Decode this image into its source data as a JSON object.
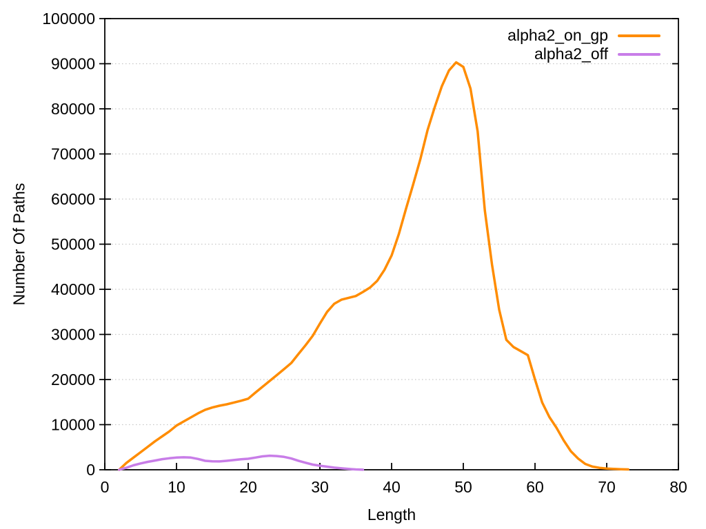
{
  "figure": {
    "background": "#ffffff",
    "border_color": "#000000",
    "grid_color": "#c6c6c6",
    "text_color": "#000000"
  },
  "chart_data": {
    "type": "line",
    "title": "",
    "xlabel": "Length",
    "ylabel": "Number Of Paths",
    "xlim": [
      0,
      80
    ],
    "ylim": [
      0,
      100000
    ],
    "x_ticks": [
      0,
      10,
      20,
      30,
      40,
      50,
      60,
      70,
      80
    ],
    "y_ticks": [
      0,
      10000,
      20000,
      30000,
      40000,
      50000,
      60000,
      70000,
      80000,
      90000,
      100000
    ],
    "grid": "horizontal-dotted",
    "legend_position": "top-right-inside",
    "series": [
      {
        "name": "alpha2_on_gp",
        "color": "#ff8c00",
        "points": [
          [
            2,
            0
          ],
          [
            3,
            1500
          ],
          [
            4,
            2700
          ],
          [
            5,
            3900
          ],
          [
            6,
            5100
          ],
          [
            7,
            6300
          ],
          [
            8,
            7400
          ],
          [
            9,
            8500
          ],
          [
            10,
            9800
          ],
          [
            11,
            10700
          ],
          [
            12,
            11600
          ],
          [
            13,
            12500
          ],
          [
            14,
            13300
          ],
          [
            15,
            13800
          ],
          [
            16,
            14200
          ],
          [
            17,
            14500
          ],
          [
            18,
            14900
          ],
          [
            19,
            15300
          ],
          [
            20,
            15750
          ],
          [
            21,
            17100
          ],
          [
            22,
            18400
          ],
          [
            23,
            19700
          ],
          [
            24,
            21000
          ],
          [
            25,
            22300
          ],
          [
            26,
            23650
          ],
          [
            27,
            25650
          ],
          [
            28,
            27600
          ],
          [
            29,
            29700
          ],
          [
            30,
            32400
          ],
          [
            31,
            35000
          ],
          [
            32,
            36800
          ],
          [
            33,
            37700
          ],
          [
            34,
            38100
          ],
          [
            35,
            38500
          ],
          [
            36,
            39400
          ],
          [
            37,
            40400
          ],
          [
            38,
            41900
          ],
          [
            39,
            44300
          ],
          [
            40,
            47500
          ],
          [
            41,
            52200
          ],
          [
            42,
            57800
          ],
          [
            43,
            63200
          ],
          [
            44,
            68800
          ],
          [
            45,
            75200
          ],
          [
            46,
            80300
          ],
          [
            47,
            85000
          ],
          [
            48,
            88500
          ],
          [
            49,
            90300
          ],
          [
            50,
            89300
          ],
          [
            51,
            84500
          ],
          [
            52,
            75000
          ],
          [
            53,
            57500
          ],
          [
            54,
            45500
          ],
          [
            55,
            35500
          ],
          [
            56,
            28800
          ],
          [
            57,
            27200
          ],
          [
            58,
            26300
          ],
          [
            59,
            25400
          ],
          [
            60,
            20000
          ],
          [
            61,
            14900
          ],
          [
            62,
            11700
          ],
          [
            63,
            9300
          ],
          [
            64,
            6500
          ],
          [
            65,
            4100
          ],
          [
            66,
            2500
          ],
          [
            67,
            1300
          ],
          [
            68,
            700
          ],
          [
            69,
            420
          ],
          [
            70,
            280
          ],
          [
            71,
            180
          ],
          [
            72,
            120
          ],
          [
            73,
            80
          ]
        ]
      },
      {
        "name": "alpha2_off",
        "color": "#c87de8",
        "points": [
          [
            2,
            0
          ],
          [
            3,
            450
          ],
          [
            4,
            1000
          ],
          [
            5,
            1400
          ],
          [
            6,
            1750
          ],
          [
            7,
            2050
          ],
          [
            8,
            2350
          ],
          [
            9,
            2550
          ],
          [
            10,
            2700
          ],
          [
            11,
            2760
          ],
          [
            12,
            2700
          ],
          [
            13,
            2400
          ],
          [
            14,
            1980
          ],
          [
            15,
            1870
          ],
          [
            16,
            1840
          ],
          [
            17,
            1980
          ],
          [
            18,
            2150
          ],
          [
            19,
            2320
          ],
          [
            20,
            2450
          ],
          [
            21,
            2700
          ],
          [
            22,
            2980
          ],
          [
            23,
            3110
          ],
          [
            24,
            3040
          ],
          [
            25,
            2850
          ],
          [
            26,
            2500
          ],
          [
            27,
            2000
          ],
          [
            28,
            1550
          ],
          [
            29,
            1150
          ],
          [
            30,
            900
          ],
          [
            31,
            680
          ],
          [
            32,
            480
          ],
          [
            33,
            320
          ],
          [
            34,
            180
          ],
          [
            35,
            80
          ],
          [
            36,
            10
          ]
        ]
      }
    ]
  },
  "legend": {
    "entries": [
      {
        "label": "alpha2_on_gp"
      },
      {
        "label": "alpha2_off"
      }
    ]
  }
}
